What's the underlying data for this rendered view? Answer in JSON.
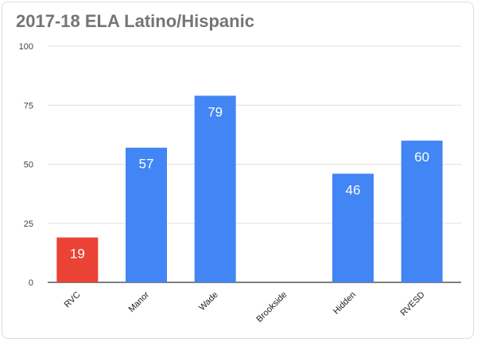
{
  "chart_data": {
    "type": "bar",
    "title": "2017-18 ELA Latino/Hispanic",
    "xlabel": "",
    "ylabel": "",
    "ylim": [
      0,
      100
    ],
    "yticks": [
      0,
      25,
      50,
      75,
      100
    ],
    "grid": true,
    "categories": [
      "RVC",
      "Manor",
      "Wade",
      "Brookside",
      "Hidden",
      "RVESD"
    ],
    "values": [
      19,
      57,
      79,
      null,
      46,
      60
    ],
    "bar_colors": [
      "#ea4335",
      "#4285f4",
      "#4285f4",
      "#4285f4",
      "#4285f4",
      "#4285f4"
    ],
    "data_labels": [
      "19",
      "57",
      "79",
      "",
      "46",
      "60"
    ]
  },
  "colors": {
    "title": "#757575",
    "gridline": "#e0e0e0",
    "axis": "#333333"
  }
}
